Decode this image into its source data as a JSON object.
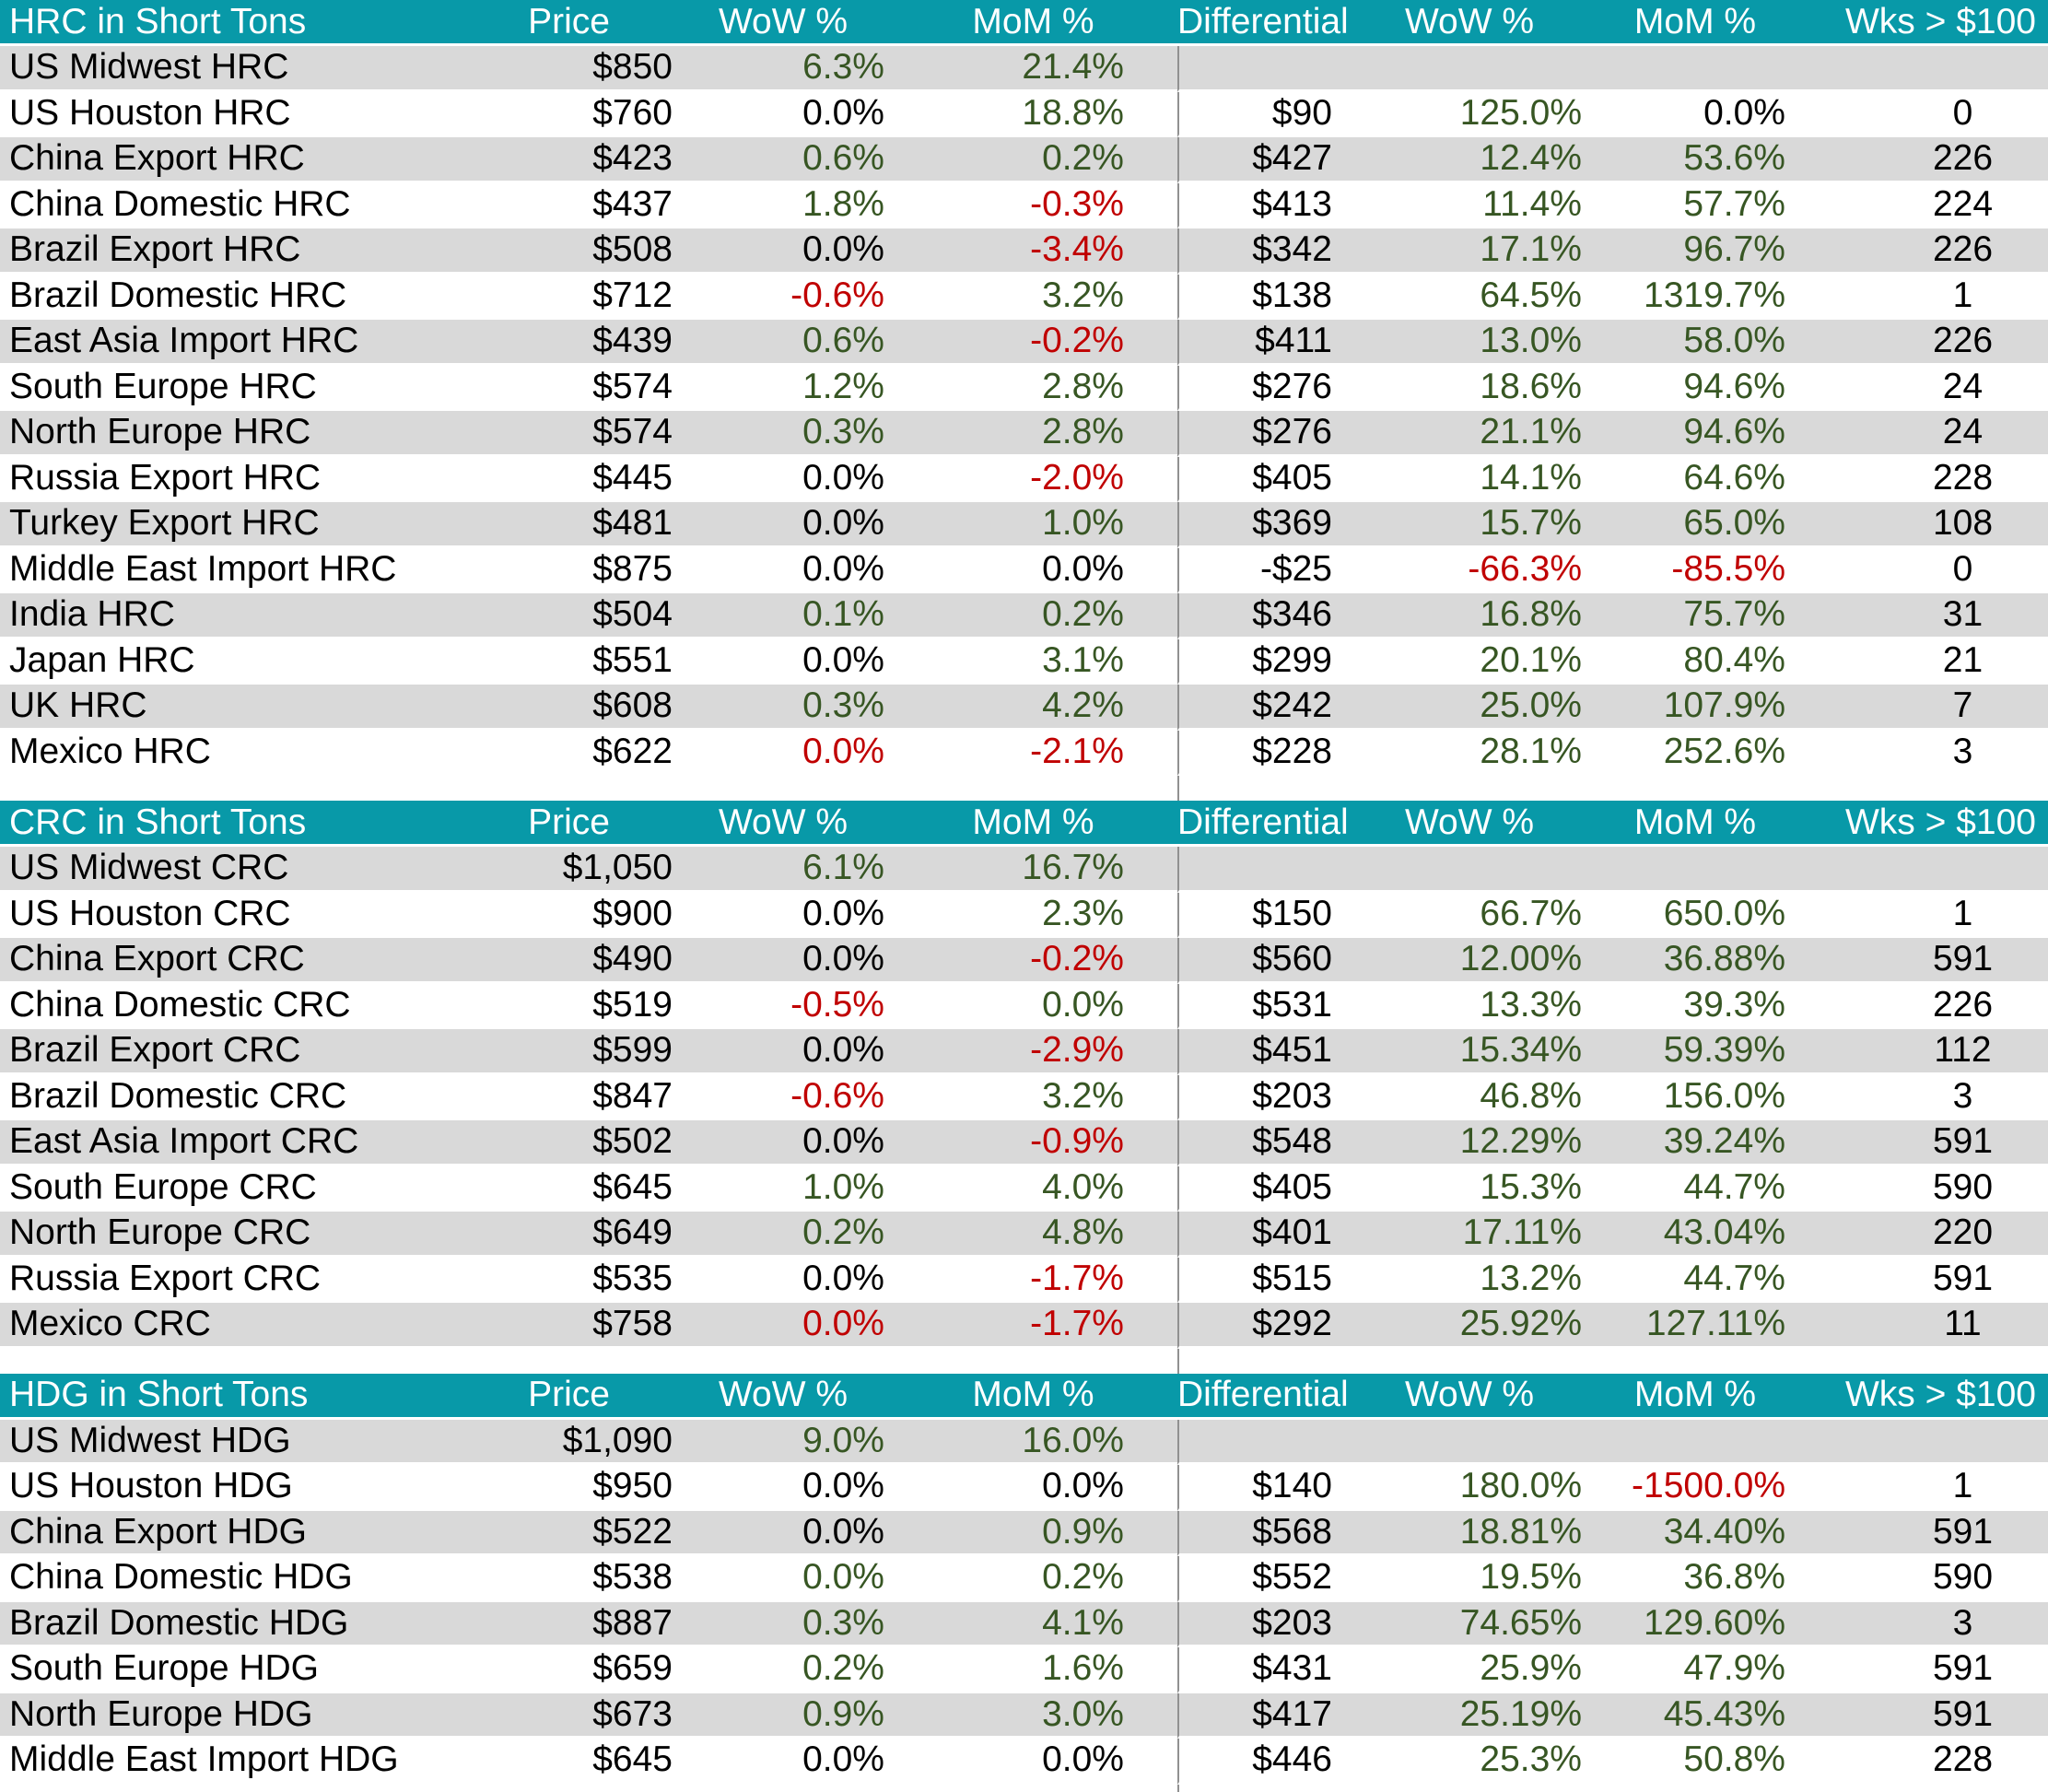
{
  "colors": {
    "header_teal": "#0899A8",
    "row_gray": "#D9D9D9",
    "positive_green": "#375623",
    "negative_red": "#C00000",
    "divider_gray": "#919191"
  },
  "chart_data": [
    {
      "type": "table",
      "title": "HRC in Short Tons",
      "columns": [
        "Price",
        "WoW %",
        "MoM %",
        "Differential",
        "WoW %",
        "MoM %",
        "Wks > $100"
      ],
      "rows": [
        {
          "name": "US Midwest HRC",
          "price": "$850",
          "wow": "6.3%",
          "wow_color": "green",
          "mom": "21.4%",
          "mom_color": "green",
          "differential": "",
          "diff_wow": "",
          "diff_wow_color": "",
          "diff_mom": "",
          "diff_mom_color": "",
          "weeks": ""
        },
        {
          "name": "US Houston HRC",
          "price": "$760",
          "wow": "0.0%",
          "wow_color": "black",
          "mom": "18.8%",
          "mom_color": "green",
          "differential": "$90",
          "diff_wow": "125.0%",
          "diff_wow_color": "green",
          "diff_mom": "0.0%",
          "diff_mom_color": "black",
          "weeks": "0"
        },
        {
          "name": "China Export HRC",
          "price": "$423",
          "wow": "0.6%",
          "wow_color": "green",
          "mom": "0.2%",
          "mom_color": "green",
          "differential": "$427",
          "diff_wow": "12.4%",
          "diff_wow_color": "green",
          "diff_mom": "53.6%",
          "diff_mom_color": "green",
          "weeks": "226"
        },
        {
          "name": "China Domestic HRC",
          "price": "$437",
          "wow": "1.8%",
          "wow_color": "green",
          "mom": "-0.3%",
          "mom_color": "red",
          "differential": "$413",
          "diff_wow": "11.4%",
          "diff_wow_color": "green",
          "diff_mom": "57.7%",
          "diff_mom_color": "green",
          "weeks": "224"
        },
        {
          "name": "Brazil Export HRC",
          "price": "$508",
          "wow": "0.0%",
          "wow_color": "black",
          "mom": "-3.4%",
          "mom_color": "red",
          "differential": "$342",
          "diff_wow": "17.1%",
          "diff_wow_color": "green",
          "diff_mom": "96.7%",
          "diff_mom_color": "green",
          "weeks": "226"
        },
        {
          "name": "Brazil Domestic HRC",
          "price": "$712",
          "wow": "-0.6%",
          "wow_color": "red",
          "mom": "3.2%",
          "mom_color": "green",
          "differential": "$138",
          "diff_wow": "64.5%",
          "diff_wow_color": "green",
          "diff_mom": "1319.7%",
          "diff_mom_color": "green",
          "weeks": "1"
        },
        {
          "name": "East Asia Import HRC",
          "price": "$439",
          "wow": "0.6%",
          "wow_color": "green",
          "mom": "-0.2%",
          "mom_color": "red",
          "differential": "$411",
          "diff_wow": "13.0%",
          "diff_wow_color": "green",
          "diff_mom": "58.0%",
          "diff_mom_color": "green",
          "weeks": "226"
        },
        {
          "name": "South Europe HRC",
          "price": "$574",
          "wow": "1.2%",
          "wow_color": "green",
          "mom": "2.8%",
          "mom_color": "green",
          "differential": "$276",
          "diff_wow": "18.6%",
          "diff_wow_color": "green",
          "diff_mom": "94.6%",
          "diff_mom_color": "green",
          "weeks": "24"
        },
        {
          "name": "North Europe HRC",
          "price": "$574",
          "wow": "0.3%",
          "wow_color": "green",
          "mom": "2.8%",
          "mom_color": "green",
          "differential": "$276",
          "diff_wow": "21.1%",
          "diff_wow_color": "green",
          "diff_mom": "94.6%",
          "diff_mom_color": "green",
          "weeks": "24"
        },
        {
          "name": "Russia Export HRC",
          "price": "$445",
          "wow": "0.0%",
          "wow_color": "black",
          "mom": "-2.0%",
          "mom_color": "red",
          "differential": "$405",
          "diff_wow": "14.1%",
          "diff_wow_color": "green",
          "diff_mom": "64.6%",
          "diff_mom_color": "green",
          "weeks": "228"
        },
        {
          "name": "Turkey Export HRC",
          "price": "$481",
          "wow": "0.0%",
          "wow_color": "black",
          "mom": "1.0%",
          "mom_color": "green",
          "differential": "$369",
          "diff_wow": "15.7%",
          "diff_wow_color": "green",
          "diff_mom": "65.0%",
          "diff_mom_color": "green",
          "weeks": "108"
        },
        {
          "name": "Middle East Import HRC",
          "price": "$875",
          "wow": "0.0%",
          "wow_color": "black",
          "mom": "0.0%",
          "mom_color": "black",
          "differential": "-$25",
          "diff_wow": "-66.3%",
          "diff_wow_color": "red",
          "diff_mom": "-85.5%",
          "diff_mom_color": "red",
          "weeks": "0"
        },
        {
          "name": "India HRC",
          "price": "$504",
          "wow": "0.1%",
          "wow_color": "green",
          "mom": "0.2%",
          "mom_color": "green",
          "differential": "$346",
          "diff_wow": "16.8%",
          "diff_wow_color": "green",
          "diff_mom": "75.7%",
          "diff_mom_color": "green",
          "weeks": "31"
        },
        {
          "name": "Japan HRC",
          "price": "$551",
          "wow": "0.0%",
          "wow_color": "black",
          "mom": "3.1%",
          "mom_color": "green",
          "differential": "$299",
          "diff_wow": "20.1%",
          "diff_wow_color": "green",
          "diff_mom": "80.4%",
          "diff_mom_color": "green",
          "weeks": "21"
        },
        {
          "name": "UK HRC",
          "price": "$608",
          "wow": "0.3%",
          "wow_color": "green",
          "mom": "4.2%",
          "mom_color": "green",
          "differential": "$242",
          "diff_wow": "25.0%",
          "diff_wow_color": "green",
          "diff_mom": "107.9%",
          "diff_mom_color": "green",
          "weeks": "7"
        },
        {
          "name": "Mexico HRC",
          "price": "$622",
          "wow": "0.0%",
          "wow_color": "red",
          "mom": "-2.1%",
          "mom_color": "red",
          "differential": "$228",
          "diff_wow": "28.1%",
          "diff_wow_color": "green",
          "diff_mom": "252.6%",
          "diff_mom_color": "green",
          "weeks": "3"
        }
      ]
    },
    {
      "type": "table",
      "title": "CRC in Short Tons",
      "columns": [
        "Price",
        "WoW %",
        "MoM %",
        "Differential",
        "WoW %",
        "MoM %",
        "Wks > $100"
      ],
      "rows": [
        {
          "name": "US Midwest CRC",
          "price": "$1,050",
          "wow": "6.1%",
          "wow_color": "green",
          "mom": "16.7%",
          "mom_color": "green",
          "differential": "",
          "diff_wow": "",
          "diff_wow_color": "",
          "diff_mom": "",
          "diff_mom_color": "",
          "weeks": ""
        },
        {
          "name": "US Houston CRC",
          "price": "$900",
          "wow": "0.0%",
          "wow_color": "black",
          "mom": "2.3%",
          "mom_color": "green",
          "differential": "$150",
          "diff_wow": "66.7%",
          "diff_wow_color": "green",
          "diff_mom": "650.0%",
          "diff_mom_color": "green",
          "weeks": "1"
        },
        {
          "name": "China Export CRC",
          "price": "$490",
          "wow": "0.0%",
          "wow_color": "black",
          "mom": "-0.2%",
          "mom_color": "red",
          "differential": "$560",
          "diff_wow": "12.00%",
          "diff_wow_color": "green",
          "diff_mom": "36.88%",
          "diff_mom_color": "green",
          "weeks": "591"
        },
        {
          "name": "China Domestic CRC",
          "price": "$519",
          "wow": "-0.5%",
          "wow_color": "red",
          "mom": "0.0%",
          "mom_color": "green",
          "differential": "$531",
          "diff_wow": "13.3%",
          "diff_wow_color": "green",
          "diff_mom": "39.3%",
          "diff_mom_color": "green",
          "weeks": "226"
        },
        {
          "name": "Brazil Export CRC",
          "price": "$599",
          "wow": "0.0%",
          "wow_color": "black",
          "mom": "-2.9%",
          "mom_color": "red",
          "differential": "$451",
          "diff_wow": "15.34%",
          "diff_wow_color": "green",
          "diff_mom": "59.39%",
          "diff_mom_color": "green",
          "weeks": "112"
        },
        {
          "name": "Brazil Domestic CRC",
          "price": "$847",
          "wow": "-0.6%",
          "wow_color": "red",
          "mom": "3.2%",
          "mom_color": "green",
          "differential": "$203",
          "diff_wow": "46.8%",
          "diff_wow_color": "green",
          "diff_mom": "156.0%",
          "diff_mom_color": "green",
          "weeks": "3"
        },
        {
          "name": "East Asia Import CRC",
          "price": "$502",
          "wow": "0.0%",
          "wow_color": "black",
          "mom": "-0.9%",
          "mom_color": "red",
          "differential": "$548",
          "diff_wow": "12.29%",
          "diff_wow_color": "green",
          "diff_mom": "39.24%",
          "diff_mom_color": "green",
          "weeks": "591"
        },
        {
          "name": "South Europe CRC",
          "price": "$645",
          "wow": "1.0%",
          "wow_color": "green",
          "mom": "4.0%",
          "mom_color": "green",
          "differential": "$405",
          "diff_wow": "15.3%",
          "diff_wow_color": "green",
          "diff_mom": "44.7%",
          "diff_mom_color": "green",
          "weeks": "590"
        },
        {
          "name": "North Europe CRC",
          "price": "$649",
          "wow": "0.2%",
          "wow_color": "green",
          "mom": "4.8%",
          "mom_color": "green",
          "differential": "$401",
          "diff_wow": "17.11%",
          "diff_wow_color": "green",
          "diff_mom": "43.04%",
          "diff_mom_color": "green",
          "weeks": "220"
        },
        {
          "name": "Russia Export CRC",
          "price": "$535",
          "wow": "0.0%",
          "wow_color": "black",
          "mom": "-1.7%",
          "mom_color": "red",
          "differential": "$515",
          "diff_wow": "13.2%",
          "diff_wow_color": "green",
          "diff_mom": "44.7%",
          "diff_mom_color": "green",
          "weeks": "591"
        },
        {
          "name": "Mexico CRC",
          "price": "$758",
          "wow": "0.0%",
          "wow_color": "red",
          "mom": "-1.7%",
          "mom_color": "red",
          "differential": "$292",
          "diff_wow": "25.92%",
          "diff_wow_color": "green",
          "diff_mom": "127.11%",
          "diff_mom_color": "green",
          "weeks": "11"
        }
      ]
    },
    {
      "type": "table",
      "title": "HDG in Short Tons",
      "columns": [
        "Price",
        "WoW %",
        "MoM %",
        "Differential",
        "WoW %",
        "MoM %",
        "Wks > $100"
      ],
      "rows": [
        {
          "name": "US Midwest HDG",
          "price": "$1,090",
          "wow": "9.0%",
          "wow_color": "green",
          "mom": "16.0%",
          "mom_color": "green",
          "differential": "",
          "diff_wow": "",
          "diff_wow_color": "",
          "diff_mom": "",
          "diff_mom_color": "",
          "weeks": ""
        },
        {
          "name": "US Houston HDG",
          "price": "$950",
          "wow": "0.0%",
          "wow_color": "black",
          "mom": "0.0%",
          "mom_color": "black",
          "differential": "$140",
          "diff_wow": "180.0%",
          "diff_wow_color": "green",
          "diff_mom": "-1500.0%",
          "diff_mom_color": "red",
          "weeks": "1"
        },
        {
          "name": "China Export HDG",
          "price": "$522",
          "wow": "0.0%",
          "wow_color": "black",
          "mom": "0.9%",
          "mom_color": "green",
          "differential": "$568",
          "diff_wow": "18.81%",
          "diff_wow_color": "green",
          "diff_mom": "34.40%",
          "diff_mom_color": "green",
          "weeks": "591"
        },
        {
          "name": "China Domestic HDG",
          "price": "$538",
          "wow": "0.0%",
          "wow_color": "green",
          "mom": "0.2%",
          "mom_color": "green",
          "differential": "$552",
          "diff_wow": "19.5%",
          "diff_wow_color": "green",
          "diff_mom": "36.8%",
          "diff_mom_color": "green",
          "weeks": "590"
        },
        {
          "name": "Brazil Domestic HDG",
          "price": "$887",
          "wow": "0.3%",
          "wow_color": "green",
          "mom": "4.1%",
          "mom_color": "green",
          "differential": "$203",
          "diff_wow": "74.65%",
          "diff_wow_color": "green",
          "diff_mom": "129.60%",
          "diff_mom_color": "green",
          "weeks": "3"
        },
        {
          "name": "South Europe HDG",
          "price": "$659",
          "wow": "0.2%",
          "wow_color": "green",
          "mom": "1.6%",
          "mom_color": "green",
          "differential": "$431",
          "diff_wow": "25.9%",
          "diff_wow_color": "green",
          "diff_mom": "47.9%",
          "diff_mom_color": "green",
          "weeks": "591"
        },
        {
          "name": "North Europe HDG",
          "price": "$673",
          "wow": "0.9%",
          "wow_color": "green",
          "mom": "3.0%",
          "mom_color": "green",
          "differential": "$417",
          "diff_wow": "25.19%",
          "diff_wow_color": "green",
          "diff_mom": "45.43%",
          "diff_mom_color": "green",
          "weeks": "591"
        },
        {
          "name": "Middle East Import HDG",
          "price": "$645",
          "wow": "0.0%",
          "wow_color": "black",
          "mom": "0.0%",
          "mom_color": "black",
          "differential": "$446",
          "diff_wow": "25.3%",
          "diff_wow_color": "green",
          "diff_mom": "50.8%",
          "diff_mom_color": "green",
          "weeks": "228"
        }
      ]
    }
  ]
}
